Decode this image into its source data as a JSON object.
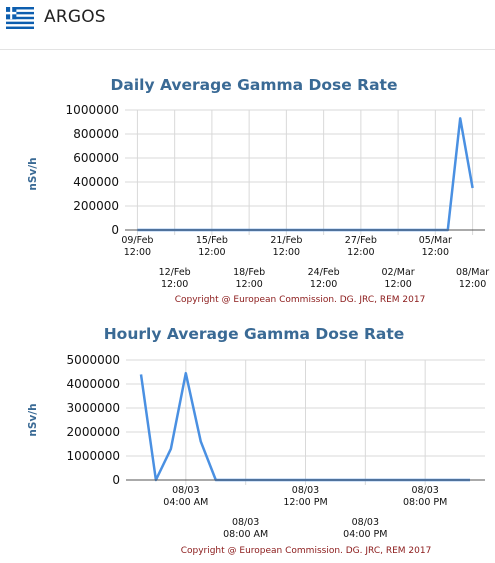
{
  "header": {
    "station_name": "ARGOS",
    "flag_icon": "greece-flag-icon"
  },
  "colors": {
    "title": "#3a6a95",
    "series": "#4a90e2",
    "copyright": "#8b1a1a"
  },
  "chart_data": [
    {
      "type": "line",
      "title": "Daily Average Gamma Dose Rate",
      "ylabel": "nSv/h",
      "xlabel": "",
      "ylim": [
        0,
        1000000
      ],
      "yticks": [
        "1000000",
        "800000",
        "600000",
        "400000",
        "200000",
        "0"
      ],
      "ytick_values": [
        1000000,
        800000,
        600000,
        400000,
        200000,
        0
      ],
      "xticks": [
        {
          "line1": "09/Feb",
          "line2": "12:00",
          "x": 0
        },
        {
          "line1": "12/Feb",
          "line2": "12:00",
          "x": 3
        },
        {
          "line1": "15/Feb",
          "line2": "12:00",
          "x": 6
        },
        {
          "line1": "18/Feb",
          "line2": "12:00",
          "x": 9
        },
        {
          "line1": "21/Feb",
          "line2": "12:00",
          "x": 12
        },
        {
          "line1": "24/Feb",
          "line2": "12:00",
          "x": 15
        },
        {
          "line1": "27/Feb",
          "line2": "12:00",
          "x": 18
        },
        {
          "line1": "02/Mar",
          "line2": "12:00",
          "x": 21
        },
        {
          "line1": "05/Mar",
          "line2": "12:00",
          "x": 24
        },
        {
          "line1": "08/Mar",
          "line2": "12:00",
          "x": 27
        }
      ],
      "xlim": [
        -1,
        28
      ],
      "x": [
        0,
        1,
        2,
        3,
        4,
        5,
        6,
        7,
        8,
        9,
        10,
        11,
        12,
        13,
        14,
        15,
        16,
        17,
        18,
        19,
        20,
        21,
        22,
        23,
        24,
        25,
        26,
        27
      ],
      "values": [
        0,
        0,
        0,
        0,
        0,
        0,
        0,
        0,
        0,
        0,
        0,
        0,
        0,
        0,
        0,
        0,
        0,
        0,
        0,
        0,
        0,
        0,
        0,
        0,
        0,
        0,
        930000,
        350000
      ],
      "grid": true,
      "copyright": "Copyright @ European Commission. DG. JRC, REM 2017"
    },
    {
      "type": "line",
      "title": "Hourly Average Gamma Dose Rate",
      "ylabel": "nSv/h",
      "xlabel": "",
      "ylim": [
        0,
        5000000
      ],
      "yticks": [
        "5000000",
        "4000000",
        "3000000",
        "2000000",
        "1000000",
        "0"
      ],
      "ytick_values": [
        5000000,
        4000000,
        3000000,
        2000000,
        1000000,
        0
      ],
      "xticks": [
        {
          "line1": "08/03",
          "line2": "04:00 AM",
          "x": 4
        },
        {
          "line1": "08/03",
          "line2": "08:00 AM",
          "x": 8
        },
        {
          "line1": "08/03",
          "line2": "12:00 PM",
          "x": 12
        },
        {
          "line1": "08/03",
          "line2": "04:00 PM",
          "x": 16
        },
        {
          "line1": "08/03",
          "line2": "08:00 PM",
          "x": 20
        }
      ],
      "xlim": [
        0,
        24
      ],
      "x": [
        1,
        2,
        3,
        4,
        5,
        6,
        7,
        8,
        9,
        10,
        11,
        12,
        13,
        14,
        15,
        16,
        17,
        18,
        19,
        20,
        21,
        22,
        23
      ],
      "values": [
        4400000,
        0,
        1300000,
        4450000,
        1600000,
        0,
        0,
        0,
        0,
        0,
        0,
        0,
        0,
        0,
        0,
        0,
        0,
        0,
        0,
        0,
        0,
        0,
        0
      ],
      "grid": true,
      "copyright": "Copyright @ European Commission. DG. JRC, REM 2017"
    }
  ]
}
